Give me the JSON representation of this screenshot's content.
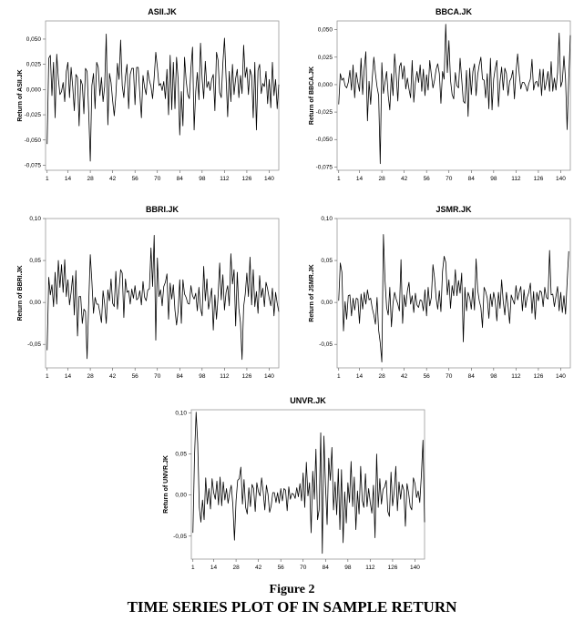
{
  "figure": {
    "label": "Figure 2",
    "title": "TIME SERIES PLOT OF IN SAMPLE RETURN"
  },
  "chart_data": [
    {
      "type": "line",
      "title": "ASII.JK",
      "ylabel": "Return of ASII.JK",
      "xlabel": "",
      "xticks": [
        1,
        14,
        28,
        42,
        56,
        70,
        84,
        98,
        112,
        126,
        140
      ],
      "ytick_labels": [
        "0,050",
        "0,025",
        "0,000",
        "-0,025",
        "-0,050",
        "-0,075"
      ],
      "ytick_values": [
        0.05,
        0.025,
        0.0,
        -0.025,
        -0.05,
        -0.075
      ],
      "ylim": [
        -0.08,
        0.068
      ],
      "xlim": [
        0,
        146
      ],
      "color": "#000000",
      "x_start": 1,
      "values": [
        -0.054,
        0.031,
        0.034,
        -0.006,
        0.027,
        -0.028,
        0.035,
        0.011,
        -0.005,
        -0.002,
        0.007,
        -0.012,
        0.018,
        0.027,
        -0.008,
        0.022,
        0.003,
        -0.021,
        0.015,
        0.012,
        -0.036,
        0.01,
        0.005,
        -0.024,
        0.021,
        0.018,
        -0.022,
        -0.071,
        0.004,
        0.016,
        -0.019,
        0.027,
        0.022,
        -0.006,
        0.012,
        -0.012,
        0.003,
        0.055,
        -0.035,
        0.016,
        0.007,
        -0.011,
        -0.026,
        -0.006,
        0.026,
        0.01,
        0.049,
        0.004,
        -0.008,
        0.013,
        0.025,
        -0.019,
        0.015,
        0.021,
        0.021,
        -0.015,
        0.022,
        0.022,
        -0.004,
        -0.028,
        0.014,
        0.002,
        -0.005,
        0.019,
        0.009,
        0.003,
        -0.009,
        0.012,
        0.037,
        0.022,
        0.004,
        0.006,
        -0.001,
        0.008,
        -0.009,
        0.02,
        -0.025,
        0.034,
        -0.02,
        0.027,
        -0.019,
        0.032,
        0.01,
        -0.045,
        -0.002,
        -0.036,
        0.032,
        0.009,
        -0.005,
        -0.009,
        0.021,
        0.042,
        -0.04,
        -0.002,
        0.017,
        -0.01,
        0.046,
        0.011,
        -0.009,
        0.028,
        0.002,
        0.008,
        -0.001,
        0.01,
        0.015,
        -0.021,
        0.037,
        0.029,
        -0.003,
        -0.008,
        0.026,
        0.051,
        0.012,
        -0.027,
        0.018,
        -0.012,
        0.025,
        -0.005,
        0.011,
        0.02,
        -0.008,
        0.014,
        -0.004,
        0.044,
        0.012,
        0.022,
        -0.005,
        0.02,
        0.014,
        -0.028,
        0.027,
        -0.04,
        0.019,
        0.025,
        -0.004,
        0.006,
        0.003,
        0.018,
        -0.014,
        0.01,
        -0.018,
        0.027,
        -0.006,
        0.01,
        -0.019,
        0.005
      ]
    },
    {
      "type": "line",
      "title": "BBCA.JK",
      "ylabel": "Return of BBCA.JK",
      "xlabel": "",
      "xticks": [
        1,
        14,
        28,
        42,
        56,
        70,
        84,
        98,
        112,
        126,
        140
      ],
      "ytick_labels": [
        "0,050",
        "0,025",
        "0,000",
        "-0,025",
        "-0,050",
        "-0,075"
      ],
      "ytick_values": [
        0.05,
        0.025,
        0.0,
        -0.025,
        -0.05,
        -0.075
      ],
      "ylim": [
        -0.078,
        0.058
      ],
      "xlim": [
        0,
        146
      ],
      "color": "#000000",
      "x_start": 1,
      "values": [
        -0.018,
        0.01,
        0.004,
        0.006,
        -0.001,
        -0.003,
        0.002,
        0.013,
        -0.005,
        0.018,
        -0.012,
        0.011,
        0.002,
        -0.006,
        0.024,
        -0.009,
        0.015,
        0.03,
        -0.033,
        0.003,
        -0.018,
        0.006,
        0.025,
        0.01,
        -0.002,
        -0.01,
        -0.072,
        0.02,
        -0.008,
        0.002,
        0.012,
        -0.01,
        -0.023,
        0.01,
        -0.01,
        0.028,
        0.009,
        -0.015,
        0.016,
        0.02,
        0.005,
        0.017,
        -0.004,
        0.006,
        -0.004,
        -0.012,
        0.022,
        -0.016,
        0.002,
        0.012,
        0.002,
        0.018,
        -0.006,
        0.014,
        -0.01,
        0.009,
        -0.005,
        0.022,
        0.009,
        -0.003,
        0.004,
        0.014,
        0.019,
        0.01,
        -0.017,
        0.012,
        0.005,
        0.055,
        0.011,
        0.04,
        0.004,
        -0.009,
        -0.013,
        0.011,
        -0.001,
        -0.003,
        0.024,
        0.005,
        -0.015,
        -0.017,
        0.013,
        -0.029,
        0.015,
        -0.009,
        0.012,
        0.019,
        -0.01,
        0.009,
        0.018,
        0.025,
        0.005,
        0.004,
        -0.012,
        0.01,
        -0.022,
        0.024,
        -0.023,
        0.005,
        0.015,
        0.022,
        -0.02,
        0.003,
        0.016,
        -0.005,
        0.015,
        0.01,
        -0.01,
        0.003,
        0.006,
        0.013,
        -0.013,
        0.011,
        0.028,
        0.01,
        -0.004,
        0.002,
        0.002,
        -0.001,
        -0.006,
        0.001,
        0.005,
        0.023,
        -0.005,
        0.002,
        0.003,
        -0.002,
        0.014,
        -0.01,
        0.014,
        -0.005,
        0.002,
        0.012,
        -0.006,
        0.021,
        -0.006,
        0.006,
        -0.005,
        0.011,
        0.047,
        -0.002,
        0.003,
        0.026,
        0.005,
        -0.041,
        0.005,
        0.045
      ]
    },
    {
      "type": "line",
      "title": "BBRI.JK",
      "ylabel": "Return of BBRI.JK",
      "xlabel": "",
      "xticks": [
        1,
        14,
        28,
        42,
        56,
        70,
        84,
        98,
        112,
        126,
        140
      ],
      "ytick_labels": [
        "0,10",
        "0,05",
        "0,00",
        "-0,05"
      ],
      "ytick_values": [
        0.1,
        0.05,
        0.0,
        -0.05
      ],
      "ylim": [
        -0.078,
        0.1
      ],
      "xlim": [
        0,
        146
      ],
      "color": "#000000",
      "x_start": 1,
      "values": [
        -0.057,
        0.03,
        0.009,
        0.021,
        -0.005,
        0.036,
        -0.002,
        0.05,
        0.018,
        0.045,
        0.012,
        0.051,
        0.007,
        0.027,
        -0.003,
        0.012,
        0.032,
        -0.015,
        0.038,
        -0.04,
        0.007,
        0.007,
        -0.025,
        -0.008,
        -0.011,
        -0.067,
        -0.002,
        0.057,
        0.025,
        -0.013,
        0.006,
        -0.002,
        -0.002,
        -0.012,
        -0.024,
        0.014,
        -0.002,
        -0.025,
        0.015,
        0.002,
        0.028,
        -0.001,
        -0.005,
        0.037,
        -0.008,
        0.015,
        0.039,
        0.035,
        -0.018,
        0.028,
        0.012,
        0.014,
        -0.002,
        0.016,
        0.005,
        0.02,
        0.003,
        0.005,
        0.014,
        -0.003,
        0.025,
        0.006,
        0.002,
        0.015,
        0.016,
        0.065,
        0.019,
        0.08,
        -0.045,
        0.053,
        0.007,
        0.015,
        -0.004,
        0.019,
        0.024,
        0.034,
        -0.02,
        0.023,
        0.004,
        0.021,
        -0.009,
        -0.027,
        -0.01,
        0.027,
        -0.025,
        0.027,
        0.01,
        0.006,
        -0.001,
        -0.002,
        0.02,
        0.008,
        0.004,
        0.011,
        -0.01,
        0.018,
        -0.007,
        -0.016,
        0.043,
        0.002,
        0.028,
        -0.008,
        0.004,
        0.017,
        -0.033,
        0.009,
        -0.02,
        0.007,
        0.047,
        0.003,
        0.033,
        -0.009,
        0.012,
        0.02,
        -0.004,
        0.058,
        0.022,
        0.039,
        -0.028,
        0.036,
        -0.007,
        -0.024,
        -0.068,
        -0.005,
        0.01,
        0.035,
        0.007,
        0.054,
        -0.003,
        0.039,
        -0.005,
        0.013,
        -0.013,
        0.032,
        0.006,
        0.017,
        -0.005,
        0.024,
        0.016,
        0.005,
        -0.004,
        0.017,
        -0.016,
        0.012,
        -0.001,
        -0.011
      ]
    },
    {
      "type": "line",
      "title": "JSMR.JK",
      "ylabel": "Return of JSMR.JK",
      "xlabel": "",
      "xticks": [
        1,
        14,
        28,
        42,
        56,
        70,
        84,
        98,
        112,
        126,
        140
      ],
      "ytick_labels": [
        "0,10",
        "0,05",
        "0,00",
        "-0,05"
      ],
      "ytick_values": [
        0.1,
        0.05,
        0.0,
        -0.05
      ],
      "ylim": [
        -0.078,
        0.1
      ],
      "xlim": [
        0,
        146
      ],
      "color": "#000000",
      "x_start": 1,
      "values": [
        0.002,
        0.047,
        0.036,
        -0.034,
        0.001,
        -0.02,
        0.008,
        0.009,
        -0.016,
        0.005,
        -0.009,
        0.005,
        0.004,
        -0.025,
        0.01,
        -0.008,
        0.012,
        -0.002,
        0.015,
        0.003,
        0.005,
        -0.007,
        -0.015,
        -0.026,
        0.006,
        -0.033,
        -0.048,
        -0.071,
        0.081,
        0.026,
        -0.006,
        -0.015,
        0.018,
        -0.029,
        -0.001,
        0.012,
        0.004,
        -0.002,
        -0.01,
        0.051,
        -0.025,
        0.009,
        -0.005,
        0.014,
        0.024,
        -0.002,
        0.008,
        -0.012,
        0.011,
        -0.003,
        -0.006,
        0.003,
        0.002,
        -0.01,
        0.015,
        -0.016,
        0.018,
        -0.004,
        0.006,
        0.045,
        0.029,
        0.005,
        -0.008,
        0.014,
        -0.011,
        0.037,
        0.055,
        0.048,
        0.009,
        0.027,
        -0.007,
        0.02,
        0.008,
        0.039,
        0.008,
        0.026,
        0.011,
        0.035,
        -0.047,
        0.018,
        -0.01,
        0.012,
        0.006,
        -0.008,
        0.017,
        -0.009,
        0.052,
        0.015,
        0.002,
        -0.006,
        -0.03,
        0.018,
        0.013,
        0.005,
        -0.019,
        0.01,
        -0.005,
        0.012,
        0.002,
        -0.022,
        0.012,
        -0.007,
        0.027,
        0.001,
        -0.015,
        0.012,
        -0.004,
        -0.025,
        0.009,
        0.003,
        -0.002,
        0.02,
        0.003,
        0.012,
        0.019,
        -0.01,
        0.015,
        -0.006,
        0.006,
        0.012,
        0.023,
        -0.013,
        0.013,
        -0.02,
        0.012,
        0.002,
        0.014,
        0.012,
        -0.005,
        0.018,
        0.006,
        0.004,
        0.062,
        0.009,
        0.01,
        -0.005,
        0.007,
        0.019,
        -0.01,
        0.012,
        -0.012,
        0.008,
        -0.014,
        0.024,
        0.061
      ]
    },
    {
      "type": "line",
      "title": "UNVR.JK",
      "ylabel": "Return of UNVR.JK",
      "xlabel": "",
      "xticks": [
        1,
        14,
        28,
        42,
        56,
        70,
        84,
        98,
        112,
        126,
        140
      ],
      "ytick_labels": [
        "0,10",
        "0,05",
        "0,00",
        "-0,05"
      ],
      "ytick_values": [
        0.1,
        0.05,
        0.0,
        -0.05
      ],
      "ylim": [
        -0.078,
        0.104
      ],
      "xlim": [
        0,
        146
      ],
      "color": "#000000",
      "x_start": 1,
      "values": [
        -0.046,
        0.048,
        0.101,
        0.063,
        -0.015,
        -0.033,
        -0.006,
        -0.03,
        0.021,
        -0.011,
        0.008,
        -0.017,
        0.02,
        0.003,
        -0.005,
        0.017,
        -0.012,
        0.022,
        -0.013,
        0.016,
        -0.006,
        0.008,
        -0.01,
        0.003,
        0.012,
        -0.012,
        -0.055,
        -0.007,
        0.018,
        0.02,
        0.034,
        -0.011,
        0.019,
        -0.015,
        -0.023,
        0.009,
        -0.014,
        0.013,
        0.008,
        -0.02,
        0.015,
        0.004,
        -0.001,
        0.021,
        0.004,
        -0.018,
        0.012,
        0.001,
        -0.021,
        -0.013,
        0.003,
        0.003,
        -0.009,
        0.003,
        -0.01,
        0.008,
        -0.007,
        0.008,
        0.006,
        -0.019,
        0.01,
        -0.005,
        0.002,
        0.001,
        -0.004,
        0.009,
        -0.002,
        0.014,
        -0.007,
        0.027,
        -0.015,
        0.04,
        -0.001,
        0.015,
        -0.046,
        0.029,
        -0.005,
        0.056,
        -0.03,
        -0.018,
        0.076,
        -0.071,
        0.072,
        0.011,
        -0.036,
        0.045,
        0.018,
        0.058,
        -0.018,
        0.016,
        -0.024,
        0.032,
        -0.042,
        0.031,
        -0.058,
        0.004,
        -0.034,
        0.015,
        -0.009,
        0.041,
        -0.014,
        0.022,
        -0.042,
        0.005,
        -0.023,
        0.035,
        -0.007,
        -0.015,
        0.026,
        -0.014,
        0.008,
        -0.009,
        -0.022,
        0.012,
        -0.052,
        0.05,
        -0.015,
        0.02,
        -0.011,
        0.007,
        0.01,
        0.018,
        -0.02,
        -0.026,
        0.028,
        -0.013,
        0.004,
        0.035,
        -0.019,
        0.016,
        -0.005,
        0.013,
        0.006,
        -0.038,
        0.014,
        0.003,
        -0.014,
        -0.018,
        0.021,
        0.014,
        -0.003,
        0.005,
        -0.009,
        0.024,
        0.067,
        -0.033
      ]
    }
  ]
}
